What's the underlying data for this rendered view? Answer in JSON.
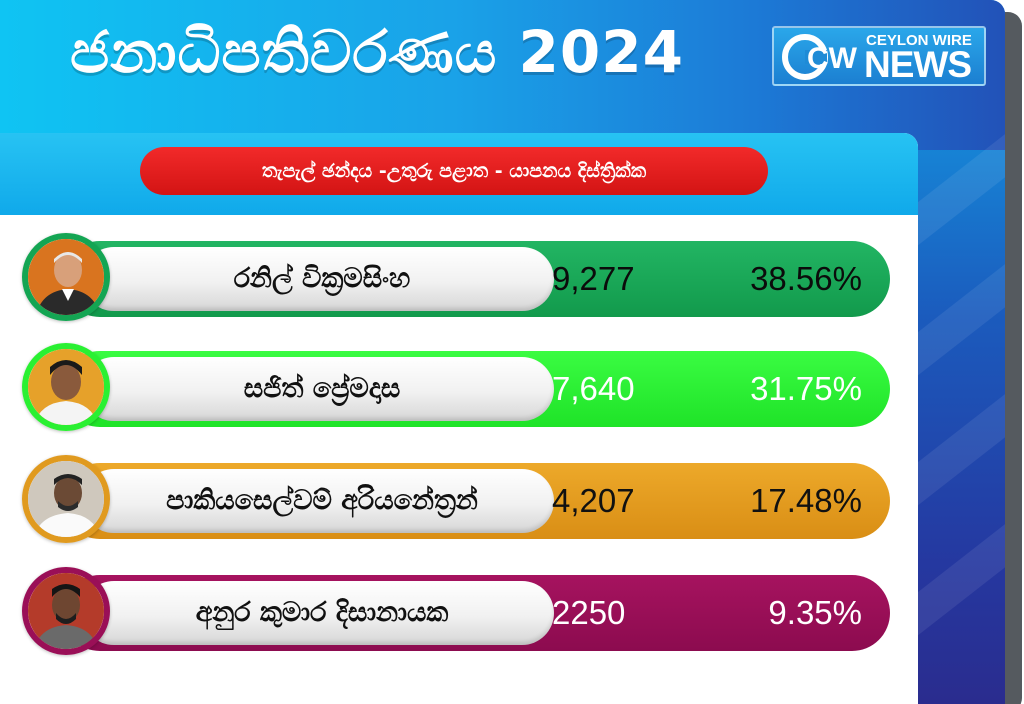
{
  "header": {
    "title": "ජනාධිපතිවරණය 2024",
    "logo": {
      "top_text": "CEYLON WIRE",
      "bottom_text": "NEWS",
      "mark_text": "CW"
    }
  },
  "subtitle": "තැපැල් ඡන්දය -උතුරු පළාත - යාපනය දිස්ත්‍රික්ක",
  "results": [
    {
      "name": "රනිල් වික්‍රමසිංහ",
      "votes": "9,277",
      "percent": "38.56%",
      "vote_share": 38.56,
      "color": "#14a553"
    },
    {
      "name": "සජිත් ප්‍රේමදාස",
      "votes": "7,640",
      "percent": "31.75%",
      "vote_share": 31.75,
      "color": "#2af032"
    },
    {
      "name": "පාකියසෙල්වම් අරියනේත්‍රන්",
      "votes": "4,207",
      "percent": "17.48%",
      "vote_share": 17.48,
      "color": "#e09a1f"
    },
    {
      "name": "අනුර කුමාර දිසානායක",
      "votes": "2250",
      "percent": "9.35%",
      "vote_share": 9.35,
      "color": "#9a0f57"
    }
  ],
  "colors": {
    "frame_blue": "#1b5bbd",
    "header_cyan": "#10a9ea",
    "subtitle_red": "#e01d1d"
  }
}
